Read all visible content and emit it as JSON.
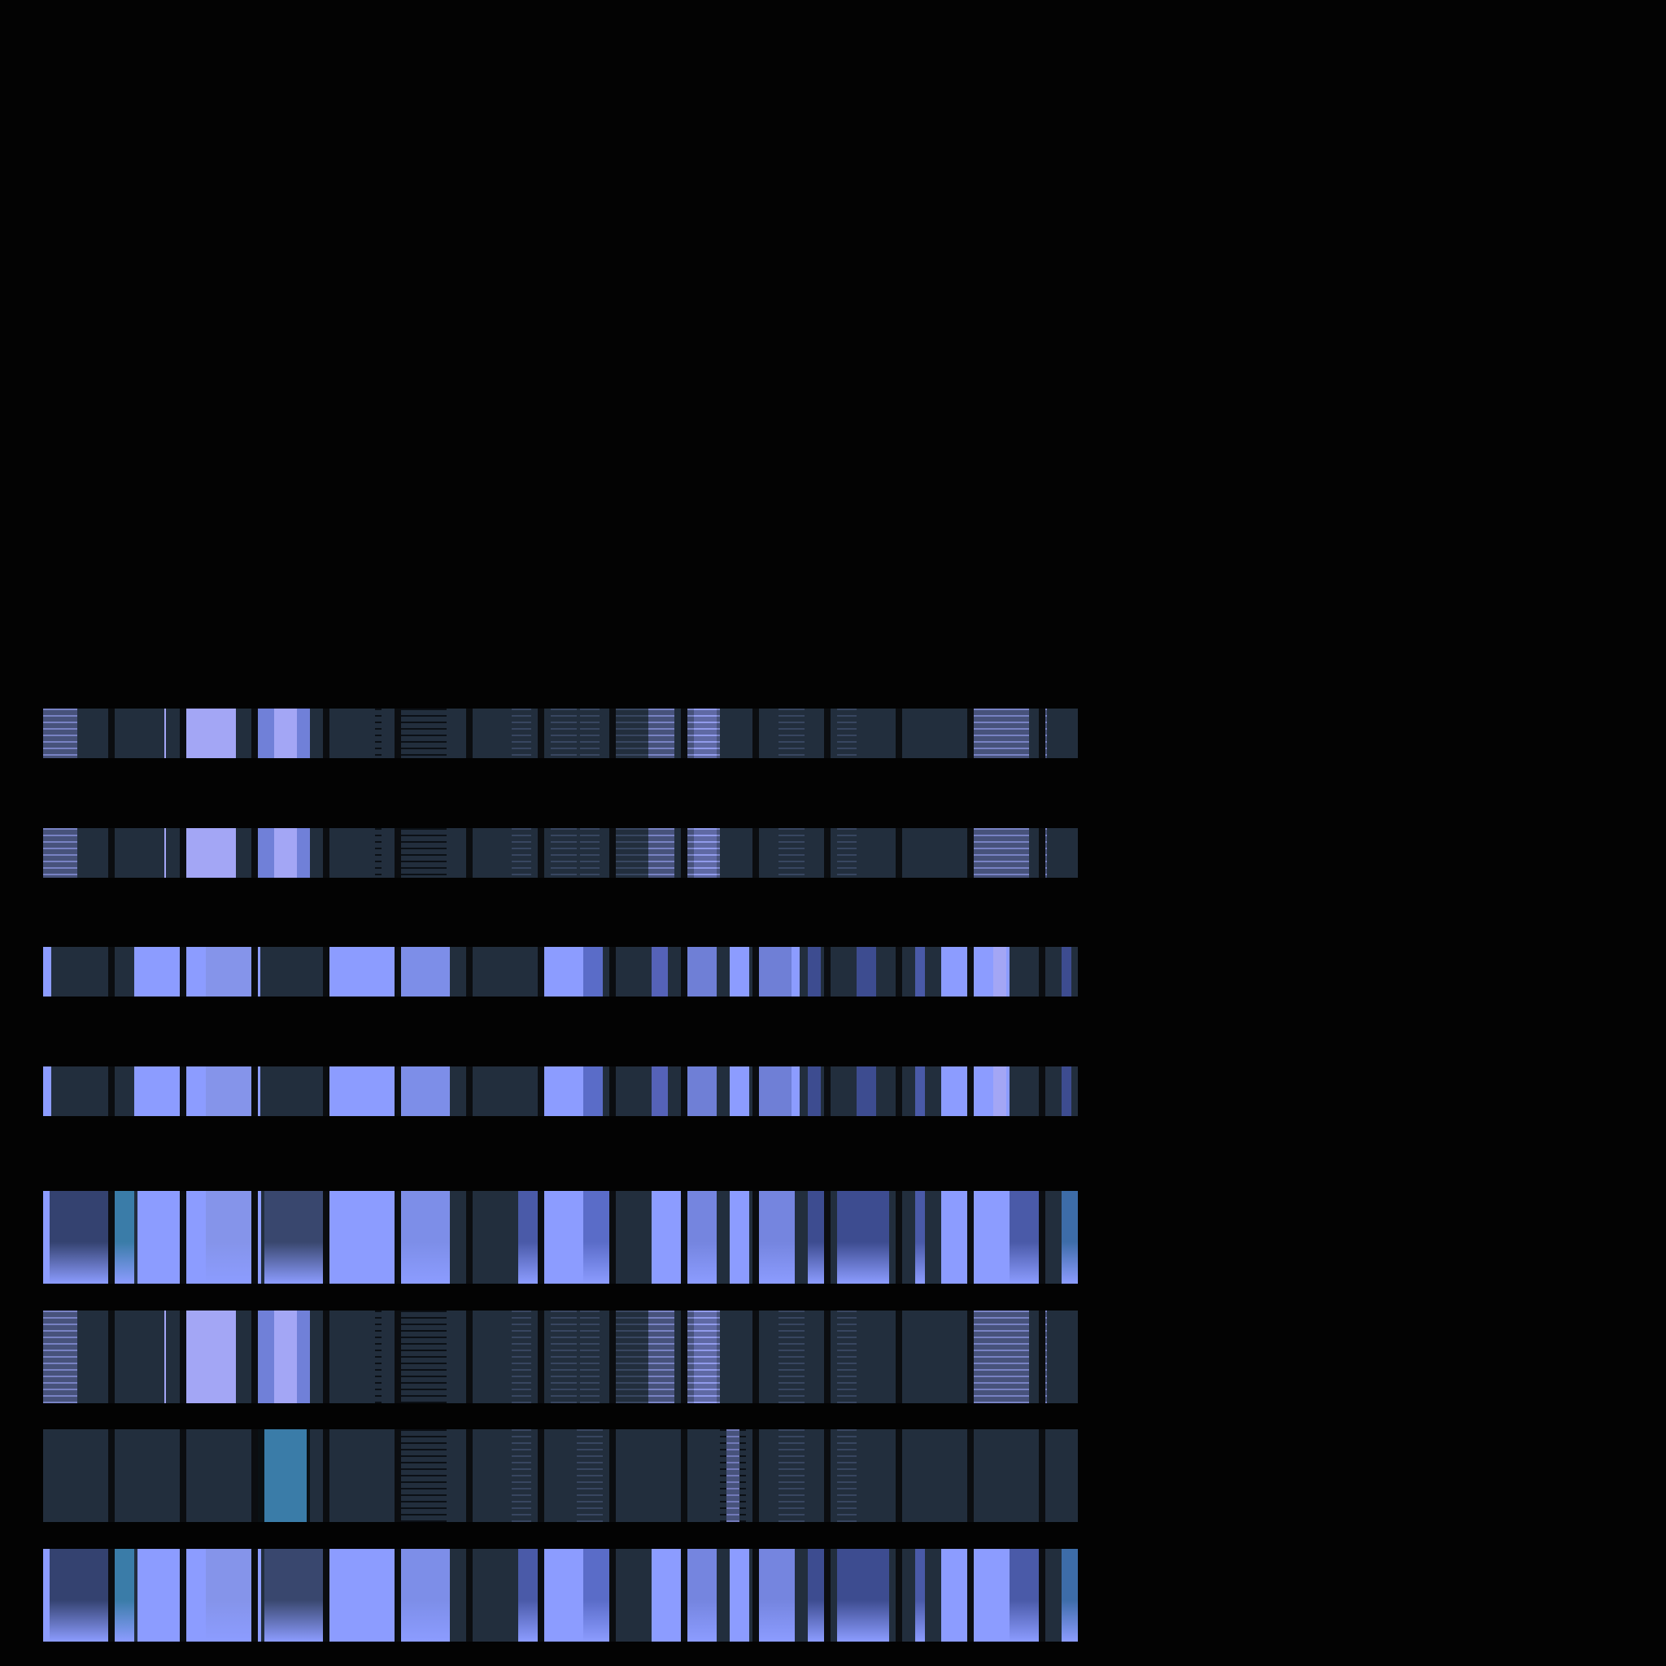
{
  "canvas": {
    "background": "#030303"
  },
  "palette": {
    "slate": "#222e3d",
    "periwinkle": "#8c9cff",
    "lavender": "#a3a6f5",
    "mid": "#7080d8",
    "teal": "#3a7ca8",
    "gap": "#0b0d10"
  },
  "strips": [
    {
      "id": "strip-1",
      "pattern": "striped"
    },
    {
      "id": "strip-2",
      "pattern": "striped"
    },
    {
      "id": "strip-3",
      "pattern": "solid"
    },
    {
      "id": "strip-4",
      "pattern": "solid"
    },
    {
      "id": "strip-5",
      "pattern": "gradient"
    },
    {
      "id": "strip-6",
      "pattern": "striped"
    },
    {
      "id": "strip-7",
      "pattern": "sparse"
    },
    {
      "id": "strip-8",
      "pattern": "gradient"
    }
  ]
}
